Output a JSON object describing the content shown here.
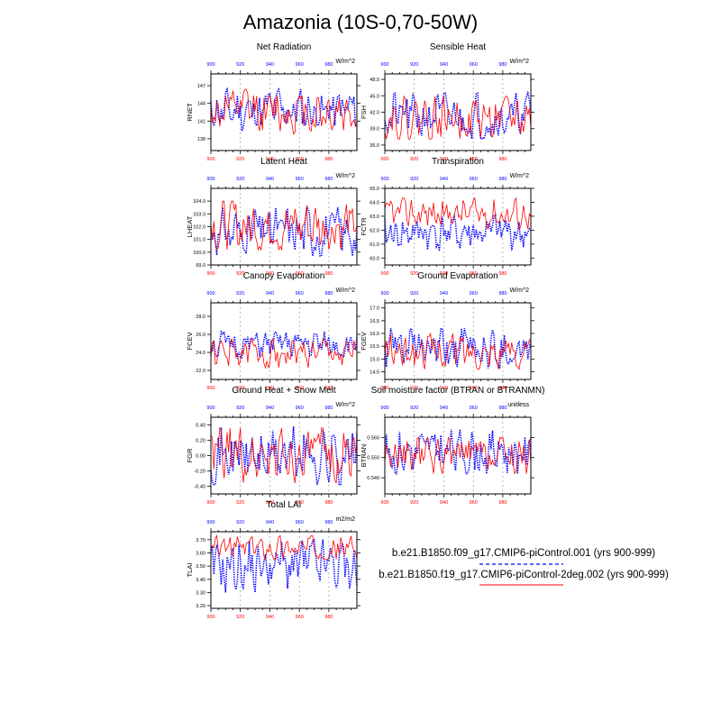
{
  "figure": {
    "title": "Amazonia (10S-0,70-50W)",
    "legend": {
      "entries": [
        {
          "label": "b.e21.B1850.f09_g17.CMIP6-piControl.001 (yrs 900-999)",
          "color": "#0000ff",
          "style": "dashed"
        },
        {
          "label": "b.e21.B1850.f19_g17.CMIP6-piControl-2deg.002 (yrs 900-999)",
          "color": "#ff0000",
          "style": "solid"
        }
      ]
    },
    "colors": {
      "blue": "#0000ff",
      "red": "#ff0000"
    }
  },
  "chart_data": [
    {
      "type": "line",
      "id": "rnet",
      "title": "Net Radiation",
      "units": "W/m^2",
      "ylabel": "RNET",
      "xlim": [
        900,
        999
      ],
      "ylim": [
        136,
        149
      ],
      "xticks": [
        900,
        920,
        940,
        960,
        980
      ],
      "yticks": [
        138,
        141,
        144,
        147
      ],
      "ytick_labels": [
        "138",
        "141",
        "144",
        "147"
      ],
      "series": [
        {
          "name": "b.e21.B1850.f09_g17.CMIP6-piControl.001",
          "color": "#0000ff",
          "base": 142.8,
          "amp": 3.6,
          "seed": 11
        },
        {
          "name": "b.e21.B1850.f19_g17.CMIP6-piControl-2deg.002",
          "color": "#ff0000",
          "base": 142.6,
          "amp": 3.8,
          "seed": 12
        }
      ]
    },
    {
      "type": "line",
      "id": "fsh",
      "title": "Sensible Heat",
      "units": "W/m^2",
      "ylabel": "FSH",
      "xlim": [
        900,
        999
      ],
      "ylim": [
        35,
        49
      ],
      "xticks": [
        900,
        920,
        940,
        960,
        980
      ],
      "yticks": [
        36,
        39,
        42,
        45,
        48
      ],
      "ytick_labels": [
        "36.0",
        "39.0",
        "42.0",
        "45.0",
        "48.0"
      ],
      "series": [
        {
          "name": "b.e21.B1850.f09_g17.CMIP6-piControl.001",
          "color": "#0000ff",
          "base": 41.3,
          "amp": 4.2,
          "seed": 21
        },
        {
          "name": "b.e21.B1850.f19_g17.CMIP6-piControl-2deg.002",
          "color": "#ff0000",
          "base": 41.0,
          "amp": 3.9,
          "seed": 22
        }
      ]
    },
    {
      "type": "line",
      "id": "lheat",
      "title": "Latent Heat",
      "units": "W/m^2",
      "ylabel": "LHEAT",
      "xlim": [
        900,
        999
      ],
      "ylim": [
        99,
        105
      ],
      "xticks": [
        900,
        920,
        940,
        960,
        980
      ],
      "yticks": [
        99,
        100,
        101,
        102,
        103,
        104
      ],
      "ytick_labels": [
        "99.0",
        "100.0",
        "101.0",
        "102.0",
        "103.0",
        "104.0"
      ],
      "series": [
        {
          "name": "b.e21.B1850.f09_g17.CMIP6-piControl.001",
          "color": "#0000ff",
          "base": 101.6,
          "amp": 1.9,
          "seed": 31
        },
        {
          "name": "b.e21.B1850.f19_g17.CMIP6-piControl-2deg.002",
          "color": "#ff0000",
          "base": 102.1,
          "amp": 1.9,
          "seed": 32
        }
      ]
    },
    {
      "type": "line",
      "id": "fctr",
      "title": "Transpiration",
      "units": "W/m^2",
      "ylabel": "FCTR",
      "xlim": [
        900,
        999
      ],
      "ylim": [
        59.5,
        65
      ],
      "xticks": [
        900,
        920,
        940,
        960,
        980
      ],
      "yticks": [
        60,
        61,
        62,
        63,
        64,
        65
      ],
      "ytick_labels": [
        "60.0",
        "61.0",
        "62.0",
        "63.0",
        "64.0",
        "65.0"
      ],
      "series": [
        {
          "name": "b.e21.B1850.f09_g17.CMIP6-piControl.001",
          "color": "#0000ff",
          "base": 61.8,
          "amp": 1.3,
          "seed": 41
        },
        {
          "name": "b.e21.B1850.f19_g17.CMIP6-piControl-2deg.002",
          "color": "#ff0000",
          "base": 63.2,
          "amp": 1.1,
          "seed": 42
        }
      ]
    },
    {
      "type": "line",
      "id": "fcev",
      "title": "Canopy Evaporation",
      "units": "W/m^2",
      "ylabel": "FCEV",
      "xlim": [
        900,
        999
      ],
      "ylim": [
        21,
        29.5
      ],
      "xticks": [
        900,
        920,
        940,
        960,
        980
      ],
      "yticks": [
        22,
        24,
        26,
        28
      ],
      "ytick_labels": [
        "22.0",
        "24.0",
        "26.0",
        "28.0"
      ],
      "series": [
        {
          "name": "b.e21.B1850.f09_g17.CMIP6-piControl.001",
          "color": "#0000ff",
          "base": 24.8,
          "amp": 1.5,
          "seed": 51
        },
        {
          "name": "b.e21.B1850.f19_g17.CMIP6-piControl-2deg.002",
          "color": "#ff0000",
          "base": 23.9,
          "amp": 1.6,
          "seed": 52
        }
      ]
    },
    {
      "type": "line",
      "id": "fgev",
      "title": "Ground Evaporation",
      "units": "W/m^2",
      "ylabel": "FGEV",
      "xlim": [
        900,
        999
      ],
      "ylim": [
        14.2,
        17.2
      ],
      "xticks": [
        900,
        920,
        940,
        960,
        980
      ],
      "yticks": [
        14.5,
        15,
        15.5,
        16,
        16.5,
        17
      ],
      "ytick_labels": [
        "14.5",
        "15.0",
        "15.5",
        "16.0",
        "16.5",
        "17.0"
      ],
      "series": [
        {
          "name": "b.e21.B1850.f09_g17.CMIP6-piControl.001",
          "color": "#0000ff",
          "base": 15.4,
          "amp": 0.8,
          "seed": 61
        },
        {
          "name": "b.e21.B1850.f19_g17.CMIP6-piControl-2deg.002",
          "color": "#ff0000",
          "base": 15.3,
          "amp": 0.7,
          "seed": 62
        }
      ]
    },
    {
      "type": "line",
      "id": "fgr",
      "title": "Ground Heat + Snow Melt",
      "units": "W/m^2",
      "ylabel": "FGR",
      "xlim": [
        900,
        999
      ],
      "ylim": [
        -0.5,
        0.5
      ],
      "xticks": [
        900,
        920,
        940,
        960,
        980
      ],
      "yticks": [
        -0.4,
        -0.2,
        0,
        0.2,
        0.4
      ],
      "ytick_labels": [
        "-0.40",
        "-0.20",
        "0.00",
        "0.20",
        "0.40"
      ],
      "series": [
        {
          "name": "b.e21.B1850.f09_g17.CMIP6-piControl.001",
          "color": "#0000ff",
          "base": 0.0,
          "amp": 0.38,
          "seed": 71
        },
        {
          "name": "b.e21.B1850.f19_g17.CMIP6-piControl-2deg.002",
          "color": "#ff0000",
          "base": 0.0,
          "amp": 0.36,
          "seed": 72
        }
      ]
    },
    {
      "type": "line",
      "id": "btran",
      "title": "Soil moisture factor (BTRAN or BTRANMN)",
      "units": "unitless",
      "ylabel": "BTRAN",
      "xlim": [
        900,
        999
      ],
      "ylim": [
        0.532,
        0.57
      ],
      "xticks": [
        900,
        920,
        940,
        960,
        980
      ],
      "yticks": [
        0.54,
        0.55,
        0.56
      ],
      "ytick_labels": [
        "0.540",
        "0.550",
        "0.560"
      ],
      "series": [
        {
          "name": "b.e21.B1850.f09_g17.CMIP6-piControl.001",
          "color": "#0000ff",
          "base": 0.553,
          "amp": 0.011,
          "seed": 81
        },
        {
          "name": "b.e21.B1850.f19_g17.CMIP6-piControl-2deg.002",
          "color": "#ff0000",
          "base": 0.551,
          "amp": 0.009,
          "seed": 82
        }
      ]
    },
    {
      "type": "line",
      "id": "tlai",
      "title": "Total LAI",
      "units": "m2/m2",
      "ylabel": "TLAI",
      "xlim": [
        900,
        999
      ],
      "ylim": [
        3.18,
        3.76
      ],
      "xticks": [
        900,
        920,
        940,
        960,
        980
      ],
      "yticks": [
        3.2,
        3.3,
        3.4,
        3.5,
        3.6,
        3.7
      ],
      "ytick_labels": [
        "3.20",
        "3.30",
        "3.40",
        "3.50",
        "3.60",
        "3.70"
      ],
      "series": [
        {
          "name": "b.e21.B1850.f09_g17.CMIP6-piControl.001",
          "color": "#0000ff",
          "base": 3.5,
          "amp": 0.2,
          "seed": 91
        },
        {
          "name": "b.e21.B1850.f19_g17.CMIP6-piControl-2deg.002",
          "color": "#ff0000",
          "base": 3.64,
          "amp": 0.09,
          "seed": 92
        }
      ]
    }
  ]
}
